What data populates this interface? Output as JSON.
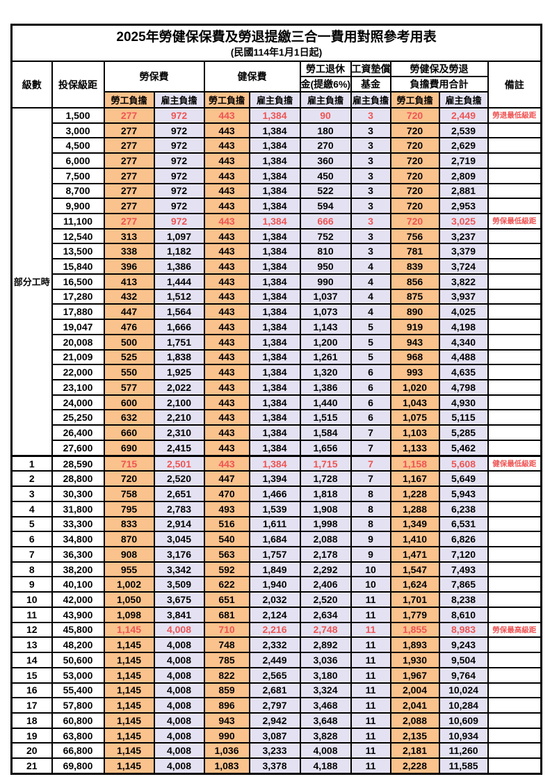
{
  "title": "2025年勞健保保費及勞退提繳三合一費用對照參考用表",
  "subtitle": "(民國114年1月1日起)",
  "columns": {
    "level": "級數",
    "bracket": "投保級距",
    "labor_insurance": "勞保費",
    "health_insurance": "健保費",
    "pension_line1": "勞工退休",
    "pension_line2": "金(提繳6%)",
    "wage_fund_line1": "工資墊償",
    "wage_fund_line2": "基金",
    "total_line1": "勞健保及勞退",
    "total_line2": "負擔費用合計",
    "remark": "備註",
    "employee_share": "勞工負擔",
    "employer_share": "雇主負擔"
  },
  "part_time_label": "部分工時",
  "part_time_row_count": 23,
  "colors": {
    "employee_bg": "#FAC28C",
    "employer_bg": "#E4E2F2",
    "highlight_red": "#EE5555",
    "remark_red": "#FB4B4B"
  },
  "rows": [
    {
      "level": "",
      "bracket": "1,500",
      "li_e": "277",
      "li_r": "972",
      "hi_e": "443",
      "hi_r": "1,384",
      "pen": "90",
      "fund": "3",
      "to_e": "720",
      "to_r": "2,449",
      "note": "勞退最低級距",
      "red": true
    },
    {
      "level": "",
      "bracket": "3,000",
      "li_e": "277",
      "li_r": "972",
      "hi_e": "443",
      "hi_r": "1,384",
      "pen": "180",
      "fund": "3",
      "to_e": "720",
      "to_r": "2,539",
      "note": "",
      "red": false
    },
    {
      "level": "",
      "bracket": "4,500",
      "li_e": "277",
      "li_r": "972",
      "hi_e": "443",
      "hi_r": "1,384",
      "pen": "270",
      "fund": "3",
      "to_e": "720",
      "to_r": "2,629",
      "note": "",
      "red": false
    },
    {
      "level": "",
      "bracket": "6,000",
      "li_e": "277",
      "li_r": "972",
      "hi_e": "443",
      "hi_r": "1,384",
      "pen": "360",
      "fund": "3",
      "to_e": "720",
      "to_r": "2,719",
      "note": "",
      "red": false
    },
    {
      "level": "",
      "bracket": "7,500",
      "li_e": "277",
      "li_r": "972",
      "hi_e": "443",
      "hi_r": "1,384",
      "pen": "450",
      "fund": "3",
      "to_e": "720",
      "to_r": "2,809",
      "note": "",
      "red": false
    },
    {
      "level": "",
      "bracket": "8,700",
      "li_e": "277",
      "li_r": "972",
      "hi_e": "443",
      "hi_r": "1,384",
      "pen": "522",
      "fund": "3",
      "to_e": "720",
      "to_r": "2,881",
      "note": "",
      "red": false
    },
    {
      "level": "",
      "bracket": "9,900",
      "li_e": "277",
      "li_r": "972",
      "hi_e": "443",
      "hi_r": "1,384",
      "pen": "594",
      "fund": "3",
      "to_e": "720",
      "to_r": "2,953",
      "note": "",
      "red": false
    },
    {
      "level": "",
      "bracket": "11,100",
      "li_e": "277",
      "li_r": "972",
      "hi_e": "443",
      "hi_r": "1,384",
      "pen": "666",
      "fund": "3",
      "to_e": "720",
      "to_r": "3,025",
      "note": "勞保最低級距",
      "red": true
    },
    {
      "level": "",
      "bracket": "12,540",
      "li_e": "313",
      "li_r": "1,097",
      "hi_e": "443",
      "hi_r": "1,384",
      "pen": "752",
      "fund": "3",
      "to_e": "756",
      "to_r": "3,237",
      "note": "",
      "red": false
    },
    {
      "level": "",
      "bracket": "13,500",
      "li_e": "338",
      "li_r": "1,182",
      "hi_e": "443",
      "hi_r": "1,384",
      "pen": "810",
      "fund": "3",
      "to_e": "781",
      "to_r": "3,379",
      "note": "",
      "red": false
    },
    {
      "level": "",
      "bracket": "15,840",
      "li_e": "396",
      "li_r": "1,386",
      "hi_e": "443",
      "hi_r": "1,384",
      "pen": "950",
      "fund": "4",
      "to_e": "839",
      "to_r": "3,724",
      "note": "",
      "red": false
    },
    {
      "level": "",
      "bracket": "16,500",
      "li_e": "413",
      "li_r": "1,444",
      "hi_e": "443",
      "hi_r": "1,384",
      "pen": "990",
      "fund": "4",
      "to_e": "856",
      "to_r": "3,822",
      "note": "",
      "red": false
    },
    {
      "level": "",
      "bracket": "17,280",
      "li_e": "432",
      "li_r": "1,512",
      "hi_e": "443",
      "hi_r": "1,384",
      "pen": "1,037",
      "fund": "4",
      "to_e": "875",
      "to_r": "3,937",
      "note": "",
      "red": false
    },
    {
      "level": "",
      "bracket": "17,880",
      "li_e": "447",
      "li_r": "1,564",
      "hi_e": "443",
      "hi_r": "1,384",
      "pen": "1,073",
      "fund": "4",
      "to_e": "890",
      "to_r": "4,025",
      "note": "",
      "red": false
    },
    {
      "level": "",
      "bracket": "19,047",
      "li_e": "476",
      "li_r": "1,666",
      "hi_e": "443",
      "hi_r": "1,384",
      "pen": "1,143",
      "fund": "5",
      "to_e": "919",
      "to_r": "4,198",
      "note": "",
      "red": false
    },
    {
      "level": "",
      "bracket": "20,008",
      "li_e": "500",
      "li_r": "1,751",
      "hi_e": "443",
      "hi_r": "1,384",
      "pen": "1,200",
      "fund": "5",
      "to_e": "943",
      "to_r": "4,340",
      "note": "",
      "red": false
    },
    {
      "level": "",
      "bracket": "21,009",
      "li_e": "525",
      "li_r": "1,838",
      "hi_e": "443",
      "hi_r": "1,384",
      "pen": "1,261",
      "fund": "5",
      "to_e": "968",
      "to_r": "4,488",
      "note": "",
      "red": false
    },
    {
      "level": "",
      "bracket": "22,000",
      "li_e": "550",
      "li_r": "1,925",
      "hi_e": "443",
      "hi_r": "1,384",
      "pen": "1,320",
      "fund": "6",
      "to_e": "993",
      "to_r": "4,635",
      "note": "",
      "red": false
    },
    {
      "level": "",
      "bracket": "23,100",
      "li_e": "577",
      "li_r": "2,022",
      "hi_e": "443",
      "hi_r": "1,384",
      "pen": "1,386",
      "fund": "6",
      "to_e": "1,020",
      "to_r": "4,798",
      "note": "",
      "red": false
    },
    {
      "level": "",
      "bracket": "24,000",
      "li_e": "600",
      "li_r": "2,100",
      "hi_e": "443",
      "hi_r": "1,384",
      "pen": "1,440",
      "fund": "6",
      "to_e": "1,043",
      "to_r": "4,930",
      "note": "",
      "red": false
    },
    {
      "level": "",
      "bracket": "25,250",
      "li_e": "632",
      "li_r": "2,210",
      "hi_e": "443",
      "hi_r": "1,384",
      "pen": "1,515",
      "fund": "6",
      "to_e": "1,075",
      "to_r": "5,115",
      "note": "",
      "red": false
    },
    {
      "level": "",
      "bracket": "26,400",
      "li_e": "660",
      "li_r": "2,310",
      "hi_e": "443",
      "hi_r": "1,384",
      "pen": "1,584",
      "fund": "7",
      "to_e": "1,103",
      "to_r": "5,285",
      "note": "",
      "red": false
    },
    {
      "level": "",
      "bracket": "27,600",
      "li_e": "690",
      "li_r": "2,415",
      "hi_e": "443",
      "hi_r": "1,384",
      "pen": "1,656",
      "fund": "7",
      "to_e": "1,133",
      "to_r": "5,462",
      "note": "",
      "red": false
    },
    {
      "level": "1",
      "bracket": "28,590",
      "li_e": "715",
      "li_r": "2,501",
      "hi_e": "443",
      "hi_r": "1,384",
      "pen": "1,715",
      "fund": "7",
      "to_e": "1,158",
      "to_r": "5,608",
      "note": "健保最低級距",
      "red": true
    },
    {
      "level": "2",
      "bracket": "28,800",
      "li_e": "720",
      "li_r": "2,520",
      "hi_e": "447",
      "hi_r": "1,394",
      "pen": "1,728",
      "fund": "7",
      "to_e": "1,167",
      "to_r": "5,649",
      "note": "",
      "red": false
    },
    {
      "level": "3",
      "bracket": "30,300",
      "li_e": "758",
      "li_r": "2,651",
      "hi_e": "470",
      "hi_r": "1,466",
      "pen": "1,818",
      "fund": "8",
      "to_e": "1,228",
      "to_r": "5,943",
      "note": "",
      "red": false
    },
    {
      "level": "4",
      "bracket": "31,800",
      "li_e": "795",
      "li_r": "2,783",
      "hi_e": "493",
      "hi_r": "1,539",
      "pen": "1,908",
      "fund": "8",
      "to_e": "1,288",
      "to_r": "6,238",
      "note": "",
      "red": false
    },
    {
      "level": "5",
      "bracket": "33,300",
      "li_e": "833",
      "li_r": "2,914",
      "hi_e": "516",
      "hi_r": "1,611",
      "pen": "1,998",
      "fund": "8",
      "to_e": "1,349",
      "to_r": "6,531",
      "note": "",
      "red": false
    },
    {
      "level": "6",
      "bracket": "34,800",
      "li_e": "870",
      "li_r": "3,045",
      "hi_e": "540",
      "hi_r": "1,684",
      "pen": "2,088",
      "fund": "9",
      "to_e": "1,410",
      "to_r": "6,826",
      "note": "",
      "red": false
    },
    {
      "level": "7",
      "bracket": "36,300",
      "li_e": "908",
      "li_r": "3,176",
      "hi_e": "563",
      "hi_r": "1,757",
      "pen": "2,178",
      "fund": "9",
      "to_e": "1,471",
      "to_r": "7,120",
      "note": "",
      "red": false
    },
    {
      "level": "8",
      "bracket": "38,200",
      "li_e": "955",
      "li_r": "3,342",
      "hi_e": "592",
      "hi_r": "1,849",
      "pen": "2,292",
      "fund": "10",
      "to_e": "1,547",
      "to_r": "7,493",
      "note": "",
      "red": false
    },
    {
      "level": "9",
      "bracket": "40,100",
      "li_e": "1,002",
      "li_r": "3,509",
      "hi_e": "622",
      "hi_r": "1,940",
      "pen": "2,406",
      "fund": "10",
      "to_e": "1,624",
      "to_r": "7,865",
      "note": "",
      "red": false
    },
    {
      "level": "10",
      "bracket": "42,000",
      "li_e": "1,050",
      "li_r": "3,675",
      "hi_e": "651",
      "hi_r": "2,032",
      "pen": "2,520",
      "fund": "11",
      "to_e": "1,701",
      "to_r": "8,238",
      "note": "",
      "red": false
    },
    {
      "level": "11",
      "bracket": "43,900",
      "li_e": "1,098",
      "li_r": "3,841",
      "hi_e": "681",
      "hi_r": "2,124",
      "pen": "2,634",
      "fund": "11",
      "to_e": "1,779",
      "to_r": "8,610",
      "note": "",
      "red": false
    },
    {
      "level": "12",
      "bracket": "45,800",
      "li_e": "1,145",
      "li_r": "4,008",
      "hi_e": "710",
      "hi_r": "2,216",
      "pen": "2,748",
      "fund": "11",
      "to_e": "1,855",
      "to_r": "8,983",
      "note": "勞保最高級距",
      "red": true
    },
    {
      "level": "13",
      "bracket": "48,200",
      "li_e": "1,145",
      "li_r": "4,008",
      "hi_e": "748",
      "hi_r": "2,332",
      "pen": "2,892",
      "fund": "11",
      "to_e": "1,893",
      "to_r": "9,243",
      "note": "",
      "red": false
    },
    {
      "level": "14",
      "bracket": "50,600",
      "li_e": "1,145",
      "li_r": "4,008",
      "hi_e": "785",
      "hi_r": "2,449",
      "pen": "3,036",
      "fund": "11",
      "to_e": "1,930",
      "to_r": "9,504",
      "note": "",
      "red": false
    },
    {
      "level": "15",
      "bracket": "53,000",
      "li_e": "1,145",
      "li_r": "4,008",
      "hi_e": "822",
      "hi_r": "2,565",
      "pen": "3,180",
      "fund": "11",
      "to_e": "1,967",
      "to_r": "9,764",
      "note": "",
      "red": false
    },
    {
      "level": "16",
      "bracket": "55,400",
      "li_e": "1,145",
      "li_r": "4,008",
      "hi_e": "859",
      "hi_r": "2,681",
      "pen": "3,324",
      "fund": "11",
      "to_e": "2,004",
      "to_r": "10,024",
      "note": "",
      "red": false
    },
    {
      "level": "17",
      "bracket": "57,800",
      "li_e": "1,145",
      "li_r": "4,008",
      "hi_e": "896",
      "hi_r": "2,797",
      "pen": "3,468",
      "fund": "11",
      "to_e": "2,041",
      "to_r": "10,284",
      "note": "",
      "red": false
    },
    {
      "level": "18",
      "bracket": "60,800",
      "li_e": "1,145",
      "li_r": "4,008",
      "hi_e": "943",
      "hi_r": "2,942",
      "pen": "3,648",
      "fund": "11",
      "to_e": "2,088",
      "to_r": "10,609",
      "note": "",
      "red": false
    },
    {
      "level": "19",
      "bracket": "63,800",
      "li_e": "1,145",
      "li_r": "4,008",
      "hi_e": "990",
      "hi_r": "3,087",
      "pen": "3,828",
      "fund": "11",
      "to_e": "2,135",
      "to_r": "10,934",
      "note": "",
      "red": false
    },
    {
      "level": "20",
      "bracket": "66,800",
      "li_e": "1,145",
      "li_r": "4,008",
      "hi_e": "1,036",
      "hi_r": "3,233",
      "pen": "4,008",
      "fund": "11",
      "to_e": "2,181",
      "to_r": "11,260",
      "note": "",
      "red": false
    },
    {
      "level": "21",
      "bracket": "69,800",
      "li_e": "1,145",
      "li_r": "4,008",
      "hi_e": "1,083",
      "hi_r": "3,378",
      "pen": "4,188",
      "fund": "11",
      "to_e": "2,228",
      "to_r": "11,585",
      "note": "",
      "red": false
    }
  ]
}
